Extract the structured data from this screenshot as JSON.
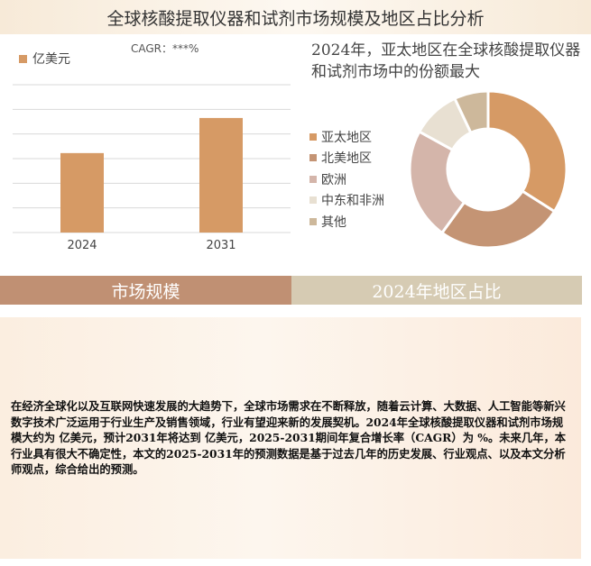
{
  "title": "全球核酸提取仪器和试剂市场规模及地区占比分析",
  "bar_panel": {
    "legend_label": "亿美元",
    "cagr_label": "CAGR：***%",
    "colors": {
      "bar": "#d69a65",
      "grid": "#d9d9d9"
    }
  },
  "pie_panel": {
    "heading": "2024年，亚太地区在全球核酸提取仪器和试剂市场中的份额最大"
  },
  "bands": {
    "left": "市场规模",
    "right": "2024年地区占比"
  },
  "description": "在经济全球化以及互联网快速发展的大趋势下，全球市场需求在不断释放，随着云计算、大数据、人工智能等新兴数字技术广泛运用于行业生产及销售领域，行业有望迎来新的发展契机。2024年全球核酸提取仪器和试剂市场规模大约为 亿美元，预计2031年将达到 亿美元，2025-2031期间年复合增长率（CAGR）为 %。未来几年，本行业具有很大不确定性，本文的2025-2031年的预测数据是基于过去几年的历史发展、行业观点、以及本文分析师观点，综合给出的预测。",
  "chart_data": [
    {
      "type": "bar",
      "categories": [
        "2024",
        "2031"
      ],
      "values": [
        43,
        62
      ],
      "ylim": [
        0,
        80
      ],
      "grid": true,
      "legend": "top-left",
      "series": [
        {
          "name": "亿美元",
          "values": [
            43,
            62
          ]
        }
      ]
    },
    {
      "type": "pie",
      "donut": true,
      "legend": "left",
      "labels": [
        "亚太地区",
        "北美地区",
        "欧洲",
        "中东和非洲",
        "其他"
      ],
      "values": [
        34,
        26,
        23,
        10,
        7
      ],
      "colors": [
        "#d69a65",
        "#c49474",
        "#d4b5aa",
        "#e8e0d2",
        "#cdb89b"
      ]
    }
  ]
}
